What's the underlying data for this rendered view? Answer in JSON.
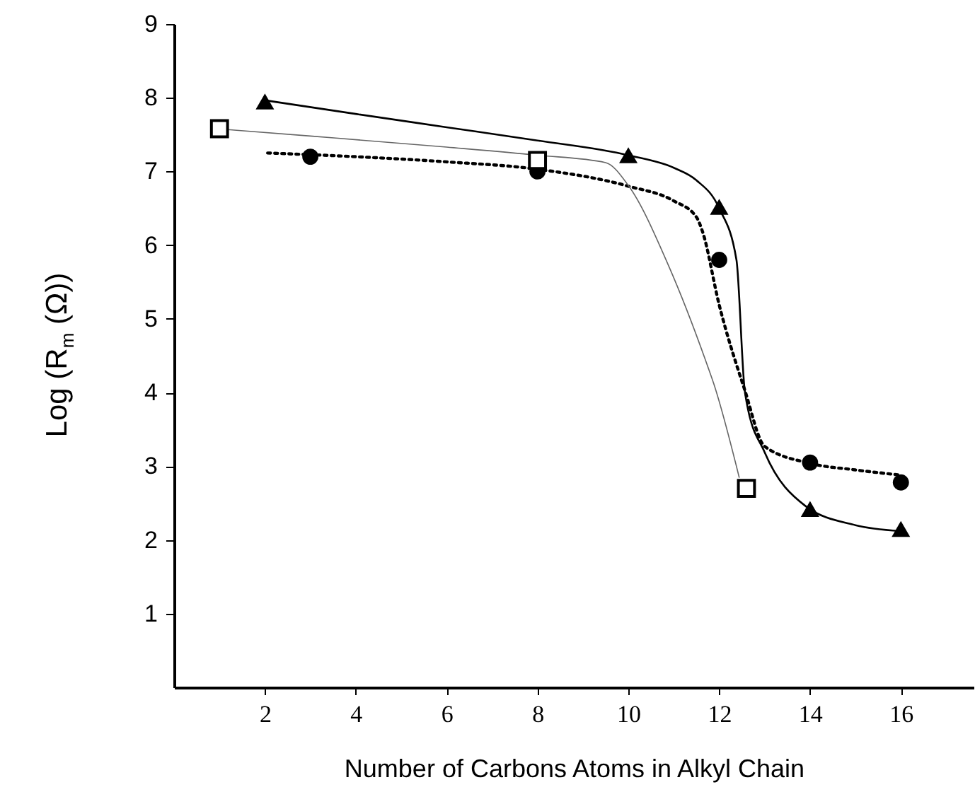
{
  "chart_data": {
    "type": "scatter",
    "xlabel": "Number of Carbons Atoms in Alkyl Chain",
    "ylabel": "Log (R$_{m}$ (Ω))",
    "xlim": [
      0,
      17.6
    ],
    "xticks": [
      2,
      4,
      6,
      8,
      10,
      12,
      14,
      16
    ],
    "ylim": [
      0,
      9
    ],
    "yticks": [
      1,
      2,
      3,
      4,
      5,
      6,
      7,
      8,
      9
    ],
    "grid": false,
    "series": [
      {
        "type": "line",
        "color": "#000000",
        "line_style": "solid",
        "x": [
          2.06,
          4,
          6,
          8,
          10,
          11,
          11.5,
          12,
          12.38,
          12.56,
          12.6,
          13,
          13.9,
          15,
          16
        ],
        "values": [
          7.96,
          7.78,
          7.6,
          7.42,
          7.22,
          7.05,
          6.88,
          6.5,
          5.8,
          4.04,
          3.88,
          3.19,
          2.46,
          2.2,
          2.12
        ]
      },
      {
        "type": "line",
        "color": "#000000",
        "line_style": "dotted",
        "x": [
          2.06,
          4,
          6,
          8,
          10,
          11,
          11.5,
          11.63,
          12,
          12.56,
          13,
          14,
          15,
          16
        ],
        "values": [
          7.25,
          7.2,
          7.13,
          7.03,
          6.8,
          6.6,
          6.38,
          6.19,
          5.19,
          4.04,
          3.27,
          3.04,
          2.95,
          2.88
        ]
      },
      {
        "type": "line",
        "color": "#666666",
        "line_style": "solid",
        "x": [
          0.94,
          3,
          6,
          8,
          9.5,
          10,
          10.88,
          11.75,
          11.88,
          12.44
        ],
        "values": [
          7.58,
          7.48,
          7.33,
          7.22,
          7.12,
          6.81,
          5.73,
          4.35,
          4.12,
          2.85
        ]
      },
      {
        "color": "#000000",
        "marker": "triangle",
        "x": [
          2,
          10,
          12,
          14,
          16
        ],
        "values": [
          7.95,
          7.22,
          6.52,
          2.42,
          2.15
        ]
      },
      {
        "color": "#000000",
        "marker": "circle",
        "x": [
          3,
          8,
          12,
          14,
          16
        ],
        "values": [
          7.2,
          7.0,
          5.8,
          3.05,
          2.78
        ]
      },
      {
        "color": "#000000",
        "marker": "square",
        "x": [
          1,
          8,
          12.6
        ],
        "values": [
          7.58,
          7.15,
          2.7
        ]
      }
    ]
  }
}
